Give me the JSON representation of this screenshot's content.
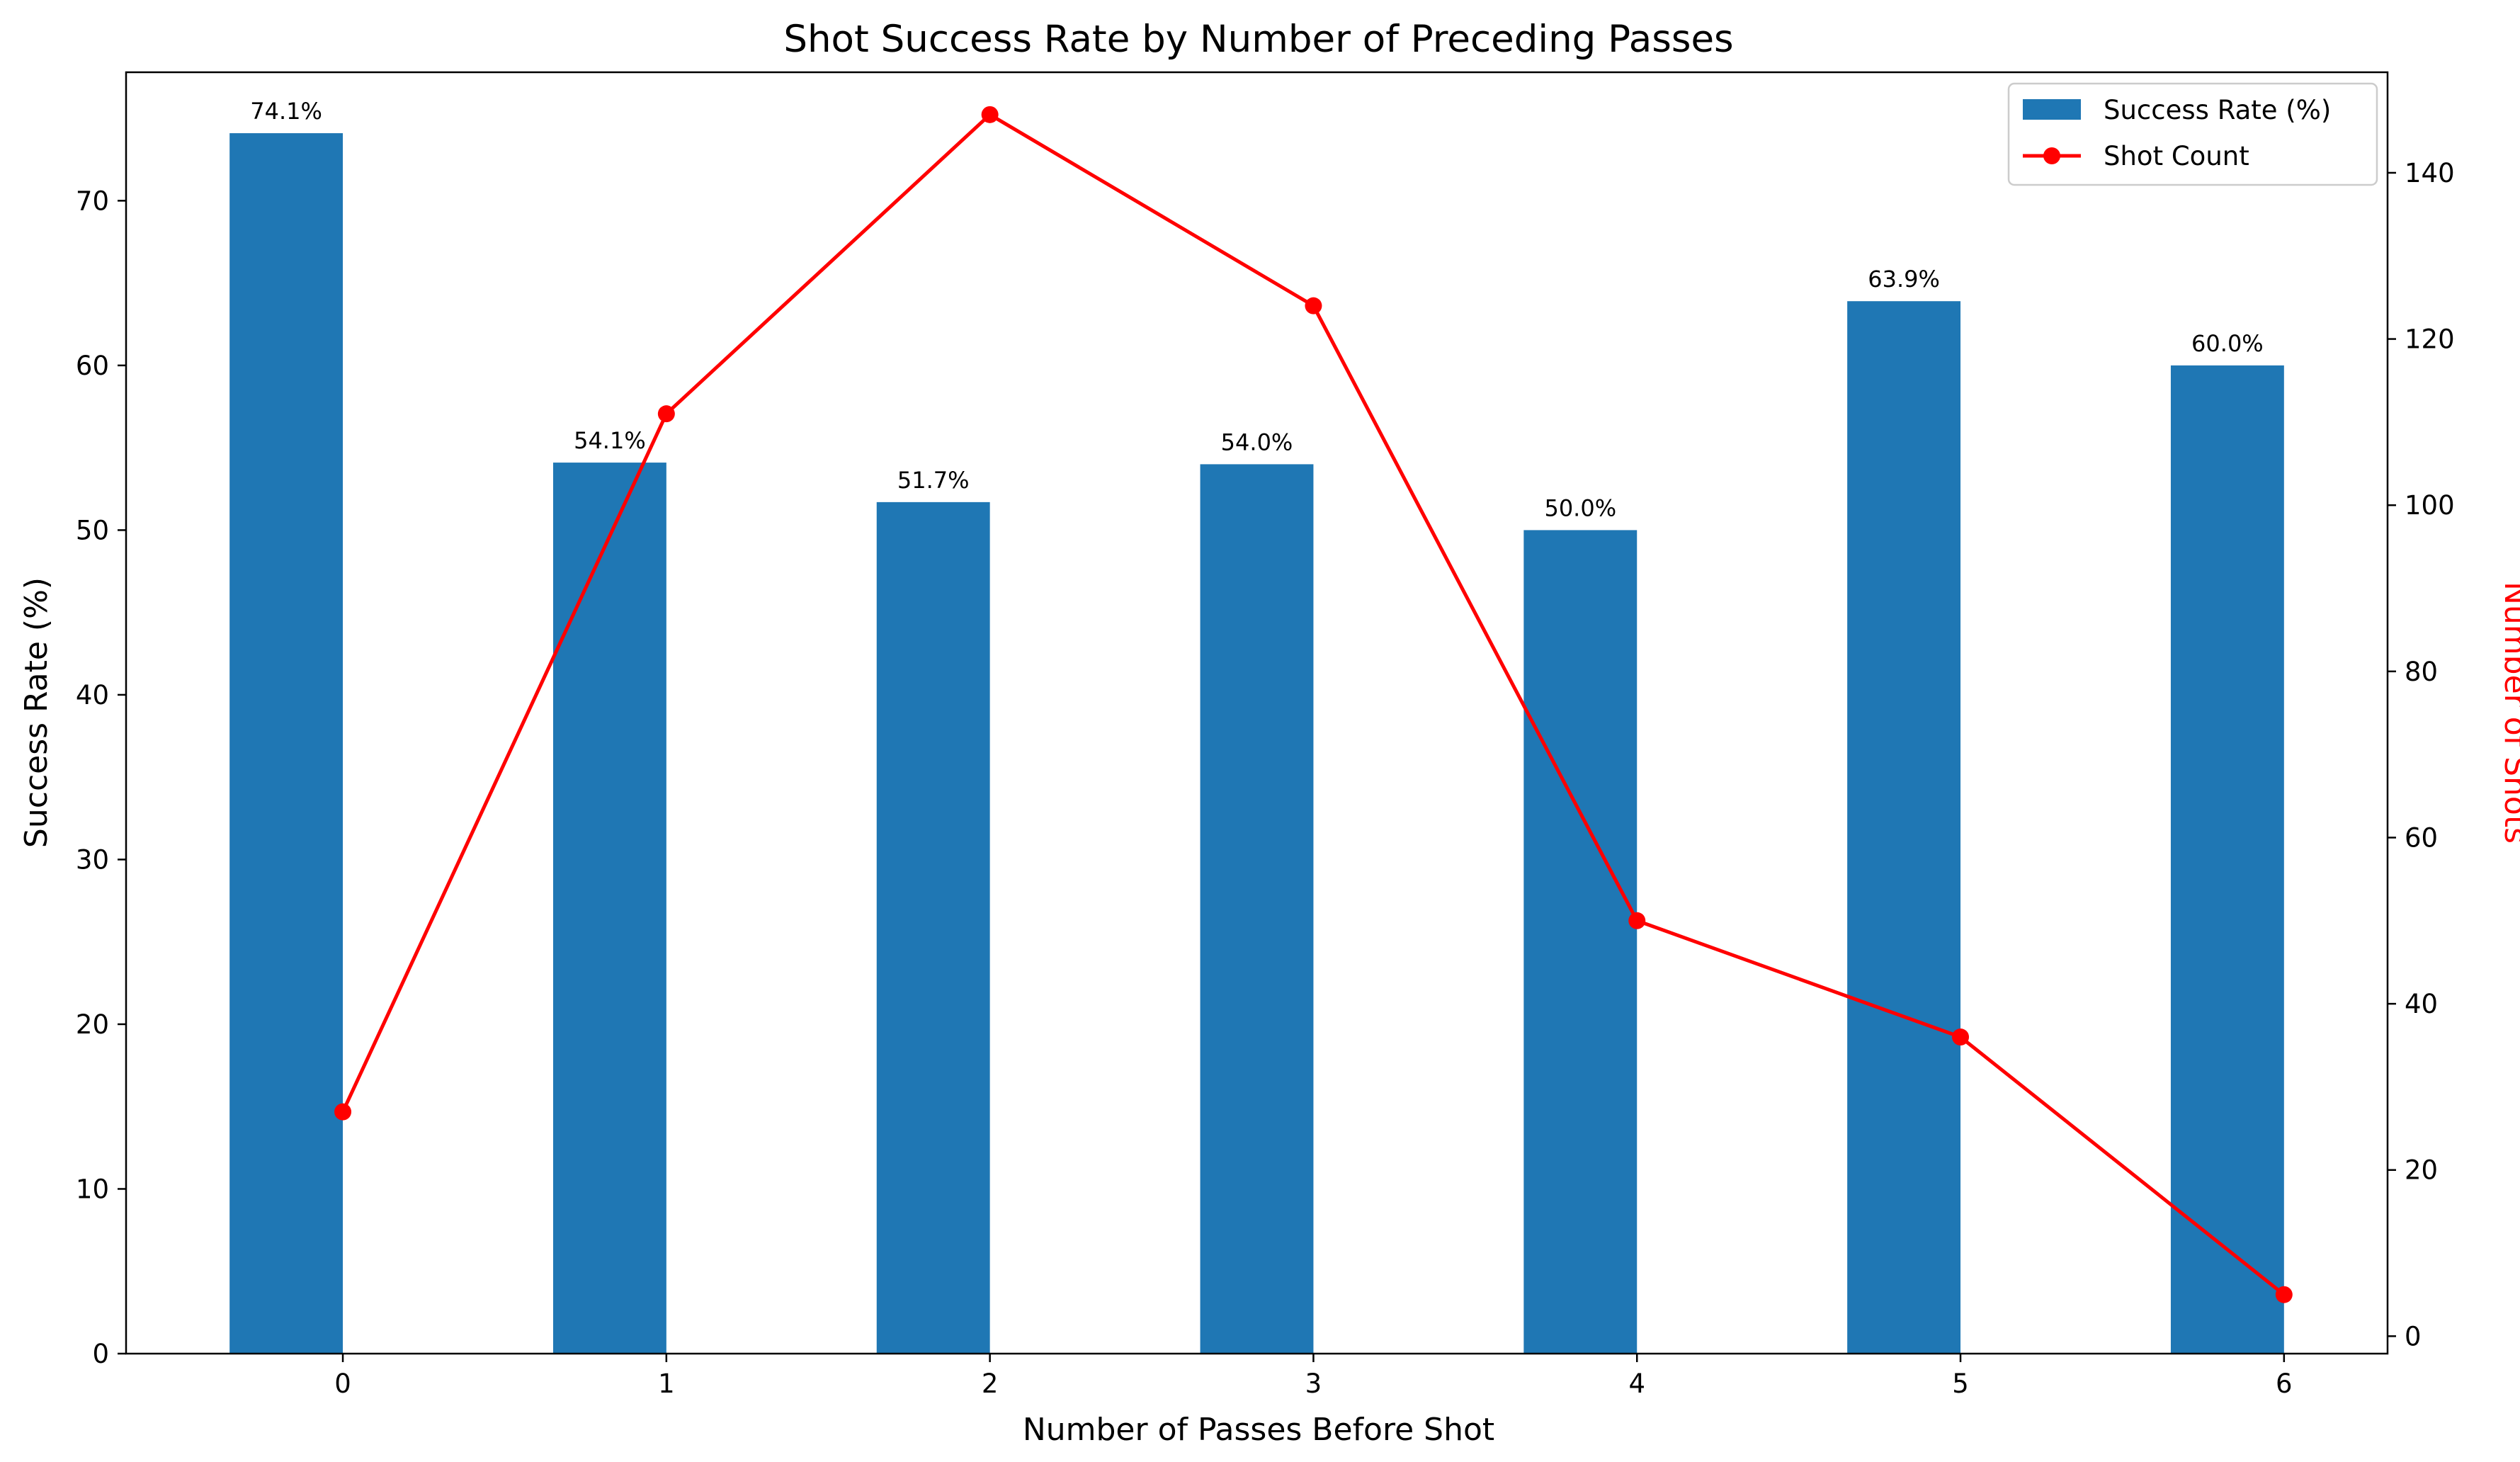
{
  "chart_data": {
    "type": "bar",
    "title": "Shot Success Rate by Number of Preceding Passes",
    "xlabel": "Number of Passes Before Shot",
    "ylabel": "Success Rate (%)",
    "y2label": "Number of Shots",
    "categories": [
      "0",
      "1",
      "2",
      "3",
      "4",
      "5",
      "6"
    ],
    "series": [
      {
        "name": "Success Rate (%)",
        "type": "bar",
        "axis": "left",
        "color": "#1f77b4",
        "values": [
          74.1,
          54.1,
          51.7,
          54.0,
          50.0,
          63.9,
          60.0
        ],
        "labels": [
          "74.1%",
          "54.1%",
          "51.7%",
          "54.0%",
          "50.0%",
          "63.9%",
          "60.0%"
        ]
      },
      {
        "name": "Shot Count",
        "type": "line",
        "axis": "right",
        "color": "#ff0000",
        "marker": "circle",
        "values": [
          27,
          111,
          147,
          124,
          50,
          36,
          5
        ]
      }
    ],
    "ylim": [
      0,
      77.8
    ],
    "y_ticks": [
      0,
      10,
      20,
      30,
      40,
      50,
      60,
      70
    ],
    "y2lim": [
      -2.1,
      152.1
    ],
    "y2_ticks": [
      0,
      20,
      40,
      60,
      80,
      100,
      120,
      140
    ],
    "xlim": [
      -0.67,
      6.32
    ],
    "bar_width": 0.35,
    "bar_offset": -0.175,
    "grid": false,
    "legend_position": "top-right"
  }
}
